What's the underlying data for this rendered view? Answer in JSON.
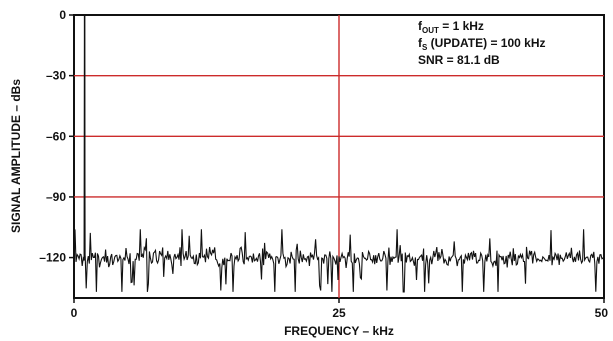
{
  "chart_data": {
    "type": "line",
    "xlabel": "FREQUENCY – kHz",
    "ylabel": "SIGNAL AMPLITUDE – dBs",
    "xlim": [
      0,
      50
    ],
    "ylim": [
      -140,
      0
    ],
    "x_ticks": [
      {
        "value": 0,
        "label": "0"
      },
      {
        "value": 25,
        "label": "25"
      },
      {
        "value": 50,
        "label": "50"
      }
    ],
    "y_ticks": [
      {
        "value": 0,
        "label": "0"
      },
      {
        "value": -30,
        "label": "–30"
      },
      {
        "value": -60,
        "label": "–60"
      },
      {
        "value": -90,
        "label": "–90"
      },
      {
        "value": -120,
        "label": "–120"
      }
    ],
    "grid": {
      "horizontal_at": [
        -30,
        -60,
        -90
      ],
      "vertical_at": [
        25
      ],
      "color": "#cc2b2b"
    },
    "series": [
      {
        "color": "#111111",
        "fundamental": {
          "x": 1,
          "y": 0
        },
        "noise_floor_mean": -120,
        "noise_floor_min": -137,
        "noise_floor_max": -106,
        "x_start": 0,
        "x_end": 50
      }
    ],
    "annotations": {
      "line1": {
        "main": "f",
        "sub": "OUT",
        "rest": " = 1 kHz"
      },
      "line2": {
        "main": "f",
        "sub": "S",
        "rest": " (UPDATE) = 100 kHz"
      },
      "line3": "SNR = 81.1 dB"
    }
  }
}
